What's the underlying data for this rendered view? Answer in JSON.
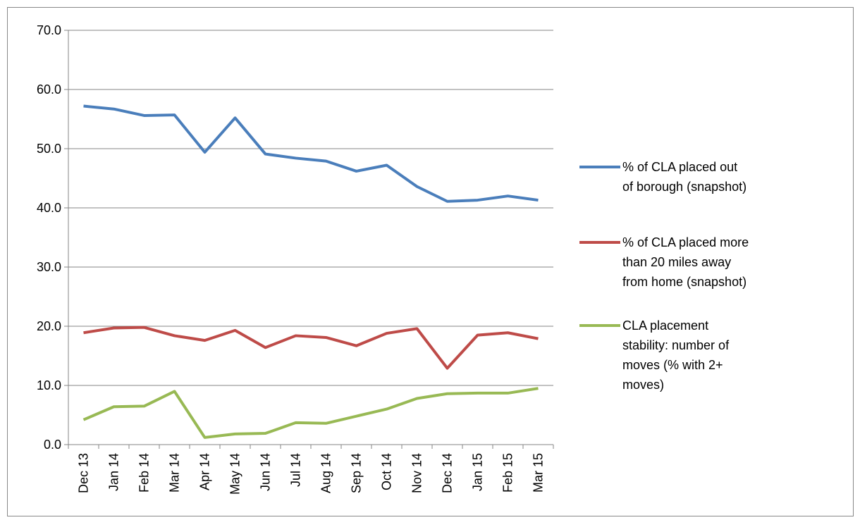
{
  "chart_data": {
    "type": "line",
    "categories": [
      "Dec 13",
      "Jan 14",
      "Feb 14",
      "Mar 14",
      "Apr 14",
      "May 14",
      "Jun 14",
      "Jul 14",
      "Aug 14",
      "Sep 14",
      "Oct 14",
      "Nov 14",
      "Dec 14",
      "Jan 15",
      "Feb 15",
      "Mar 15"
    ],
    "series": [
      {
        "name": "% of CLA placed out of borough (snapshot)",
        "color": "#4a7ebb",
        "values": [
          57.2,
          56.7,
          55.6,
          55.7,
          49.4,
          55.2,
          49.1,
          48.4,
          47.9,
          46.2,
          47.2,
          43.6,
          41.1,
          41.3,
          42.0,
          41.3
        ]
      },
      {
        "name": "% of CLA placed more than 20 miles away from home (snapshot)",
        "color": "#be4b48",
        "values": [
          18.9,
          19.7,
          19.8,
          18.4,
          17.6,
          19.3,
          16.4,
          18.4,
          18.1,
          16.7,
          18.8,
          19.6,
          12.9,
          18.5,
          18.9,
          17.9
        ]
      },
      {
        "name": "CLA placement stability: number of moves (% with 2+ moves)",
        "color": "#98b954",
        "values": [
          4.2,
          6.4,
          6.5,
          9.0,
          1.2,
          1.8,
          1.9,
          3.7,
          3.6,
          4.8,
          6.0,
          7.8,
          8.6,
          8.7,
          8.7,
          9.5
        ]
      }
    ],
    "ylim": [
      0,
      70
    ],
    "yticks": [
      {
        "value": 0,
        "label": "0.0"
      },
      {
        "value": 10,
        "label": "10.0"
      },
      {
        "value": 20,
        "label": "20.0"
      },
      {
        "value": 30,
        "label": "30.0"
      },
      {
        "value": 40,
        "label": "40.0"
      },
      {
        "value": 50,
        "label": "50.0"
      },
      {
        "value": 60,
        "label": "60.0"
      },
      {
        "value": 70,
        "label": "70.0"
      }
    ],
    "grid": true,
    "legend": "right"
  }
}
